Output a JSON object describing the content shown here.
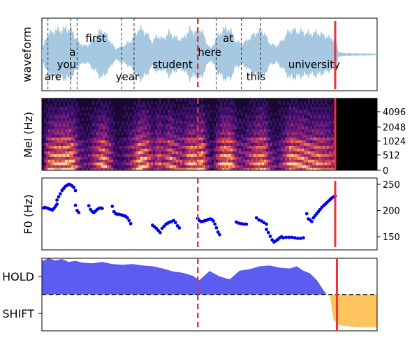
{
  "colors": {
    "waveform": "#a6c8e0",
    "f0_points": "#0000ee",
    "hold_fill": "#5c5cf0",
    "shift_fill": "#fcc45c",
    "current_line": "#ee3030",
    "word_line": "#333333"
  },
  "chart_data": [
    {
      "type": "area",
      "panel": "waveform",
      "ylabel": "waveform",
      "x_range": [
        0,
        1
      ],
      "y_range": [
        -1,
        1
      ],
      "waveform_envelope": {
        "x": [
          0.0,
          0.015,
          0.035,
          0.06,
          0.085,
          0.11,
          0.135,
          0.16,
          0.18,
          0.2,
          0.22,
          0.25,
          0.27,
          0.29,
          0.31,
          0.33,
          0.345,
          0.36,
          0.38,
          0.4,
          0.42,
          0.44,
          0.46,
          0.475,
          0.49,
          0.505,
          0.52,
          0.54,
          0.56,
          0.58,
          0.6,
          0.62,
          0.64,
          0.66,
          0.68,
          0.7,
          0.72,
          0.74,
          0.76,
          0.78,
          0.8,
          0.82,
          0.84,
          0.86,
          0.875,
          0.885,
          0.9,
          1.0
        ],
        "amplitude": [
          0.15,
          0.7,
          0.85,
          0.9,
          0.95,
          0.4,
          0.3,
          0.65,
          0.9,
          0.55,
          0.2,
          0.35,
          0.55,
          0.95,
          0.8,
          0.45,
          0.7,
          0.55,
          0.8,
          0.6,
          0.55,
          0.9,
          0.8,
          0.95,
          0.45,
          0.2,
          0.6,
          0.9,
          0.95,
          0.45,
          0.4,
          0.6,
          0.8,
          0.85,
          0.4,
          0.3,
          0.55,
          0.9,
          0.85,
          0.8,
          0.75,
          0.8,
          0.7,
          0.6,
          0.55,
          0.1,
          0.05,
          0.03
        ]
      },
      "word_boundaries": [
        0.018,
        0.085,
        0.105,
        0.238,
        0.275,
        0.52,
        0.595,
        0.653
      ],
      "current_position": 0.875,
      "predicted_position": 0.465,
      "words": [
        {
          "text": "are",
          "x": 0.008,
          "y": -0.65
        },
        {
          "text": "you",
          "x": 0.045,
          "y": -0.28
        },
        {
          "text": "a",
          "x": 0.082,
          "y": 0.08
        },
        {
          "text": "first",
          "x": 0.13,
          "y": 0.5
        },
        {
          "text": "year",
          "x": 0.22,
          "y": -0.65
        },
        {
          "text": "student",
          "x": 0.33,
          "y": -0.28
        },
        {
          "text": "here",
          "x": 0.465,
          "y": 0.08
        },
        {
          "text": "at",
          "x": 0.54,
          "y": 0.5
        },
        {
          "text": "this",
          "x": 0.61,
          "y": -0.65
        },
        {
          "text": "university",
          "x": 0.735,
          "y": -0.28
        }
      ]
    },
    {
      "type": "heatmap",
      "panel": "mel_spectrogram",
      "ylabel": "Mel (Hz)",
      "y_ticks": [
        0,
        512,
        1024,
        2048,
        4096
      ],
      "silence_after": 0.875
    },
    {
      "type": "scatter",
      "panel": "f0",
      "ylabel": "F0 (Hz)",
      "ylim": [
        125,
        262
      ],
      "y_ticks": [
        150,
        200,
        250
      ],
      "segments": [
        {
          "x_start": 0.005,
          "x_end": 0.045,
          "y": [
            205,
            206,
            205,
            204,
            203,
            202,
            201,
            204,
            208,
            212
          ]
        },
        {
          "x_start": 0.045,
          "x_end": 0.1,
          "y": [
            220,
            226,
            232,
            238,
            242,
            246,
            248,
            250,
            249,
            247,
            244,
            238
          ]
        },
        {
          "x_start": 0.1,
          "x_end": 0.11,
          "y": [
            210,
            200,
            196
          ]
        },
        {
          "x_start": 0.14,
          "x_end": 0.18,
          "y": [
            209,
            202,
            198,
            196,
            199,
            202,
            204,
            205,
            204
          ]
        },
        {
          "x_start": 0.21,
          "x_end": 0.265,
          "y": [
            208,
            198,
            194,
            193,
            193,
            192,
            191,
            190,
            189,
            186,
            181,
            175
          ]
        },
        {
          "x_start": 0.33,
          "x_end": 0.41,
          "y": [
            172,
            169,
            166,
            162,
            158,
            166,
            170,
            174,
            176,
            178,
            179,
            181,
            177,
            171,
            167
          ]
        },
        {
          "x_start": 0.465,
          "x_end": 0.53,
          "y": [
            185,
            181,
            179,
            179,
            180,
            181,
            182,
            183,
            184,
            183,
            180,
            174,
            167,
            159,
            154
          ]
        },
        {
          "x_start": 0.58,
          "x_end": 0.61,
          "y": [
            178,
            176,
            175,
            174,
            174
          ]
        },
        {
          "x_start": 0.64,
          "x_end": 0.67,
          "y": [
            186,
            182,
            180,
            177,
            174
          ]
        },
        {
          "x_start": 0.67,
          "x_end": 0.715,
          "y": [
            164,
            158,
            151,
            144,
            140,
            142,
            145,
            148,
            150
          ]
        },
        {
          "x_start": 0.72,
          "x_end": 0.78,
          "y": [
            148,
            149,
            149,
            149,
            148,
            147,
            147,
            148
          ]
        },
        {
          "x_start": 0.79,
          "x_end": 0.875,
          "y": [
            194,
            184,
            182,
            179,
            186,
            190,
            194,
            198,
            202,
            206,
            209,
            212,
            215,
            218,
            221,
            224,
            226,
            228
          ]
        }
      ],
      "current_position": 0.875,
      "predicted_position": 0.465
    },
    {
      "type": "area",
      "panel": "turn_prediction",
      "y_tick_labels": [
        "HOLD",
        "SHIFT"
      ],
      "ylim": [
        -1,
        1
      ],
      "threshold": 0,
      "hold_series": {
        "x": [
          0.0,
          0.02,
          0.04,
          0.06,
          0.08,
          0.1,
          0.12,
          0.15,
          0.18,
          0.21,
          0.24,
          0.27,
          0.3,
          0.33,
          0.36,
          0.39,
          0.42,
          0.45,
          0.47,
          0.5,
          0.53,
          0.56,
          0.59,
          0.62,
          0.65,
          0.68,
          0.71,
          0.74,
          0.76,
          0.78,
          0.8,
          0.82,
          0.84,
          0.85
        ],
        "y": [
          0.92,
          1.0,
          0.94,
          0.98,
          0.9,
          0.93,
          0.88,
          0.86,
          0.9,
          0.84,
          0.82,
          0.84,
          0.8,
          0.78,
          0.72,
          0.64,
          0.6,
          0.52,
          0.4,
          0.65,
          0.5,
          0.42,
          0.66,
          0.7,
          0.78,
          0.8,
          0.74,
          0.72,
          0.78,
          0.66,
          0.58,
          0.4,
          0.12,
          0.0
        ]
      },
      "shift_series": {
        "x": [
          0.86,
          0.87,
          0.89,
          0.92,
          0.95,
          0.98,
          1.0
        ],
        "y": [
          -0.1,
          -0.7,
          -0.85,
          -0.88,
          -0.9,
          -0.9,
          -0.9
        ]
      },
      "current_position": 0.88,
      "predicted_position": 0.465
    }
  ]
}
